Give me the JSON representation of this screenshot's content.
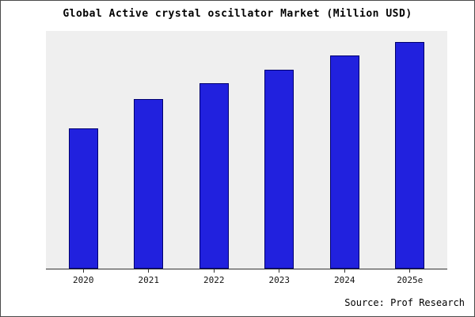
{
  "title": "Global Active crystal oscillator Market (Million USD)",
  "source": "Source: Prof Research",
  "colors": {
    "bar_fill": "#2121de",
    "bar_border": "#00006e",
    "plot_bg": "#efefef",
    "page_bg": "#ffffff",
    "axis": "#333333"
  },
  "chart_data": {
    "type": "bar",
    "categories": [
      "2020",
      "2021",
      "2022",
      "2023",
      "2024",
      "2025e"
    ],
    "values": [
      62,
      75,
      82,
      88,
      94,
      100
    ],
    "title": "Global Active crystal oscillator Market (Million USD)",
    "xlabel": "",
    "ylabel": "",
    "ylim": [
      0,
      105
    ],
    "grid": false,
    "legend": false,
    "y_axis_tick_labels_visible": false,
    "source": "Source: Prof Research"
  }
}
